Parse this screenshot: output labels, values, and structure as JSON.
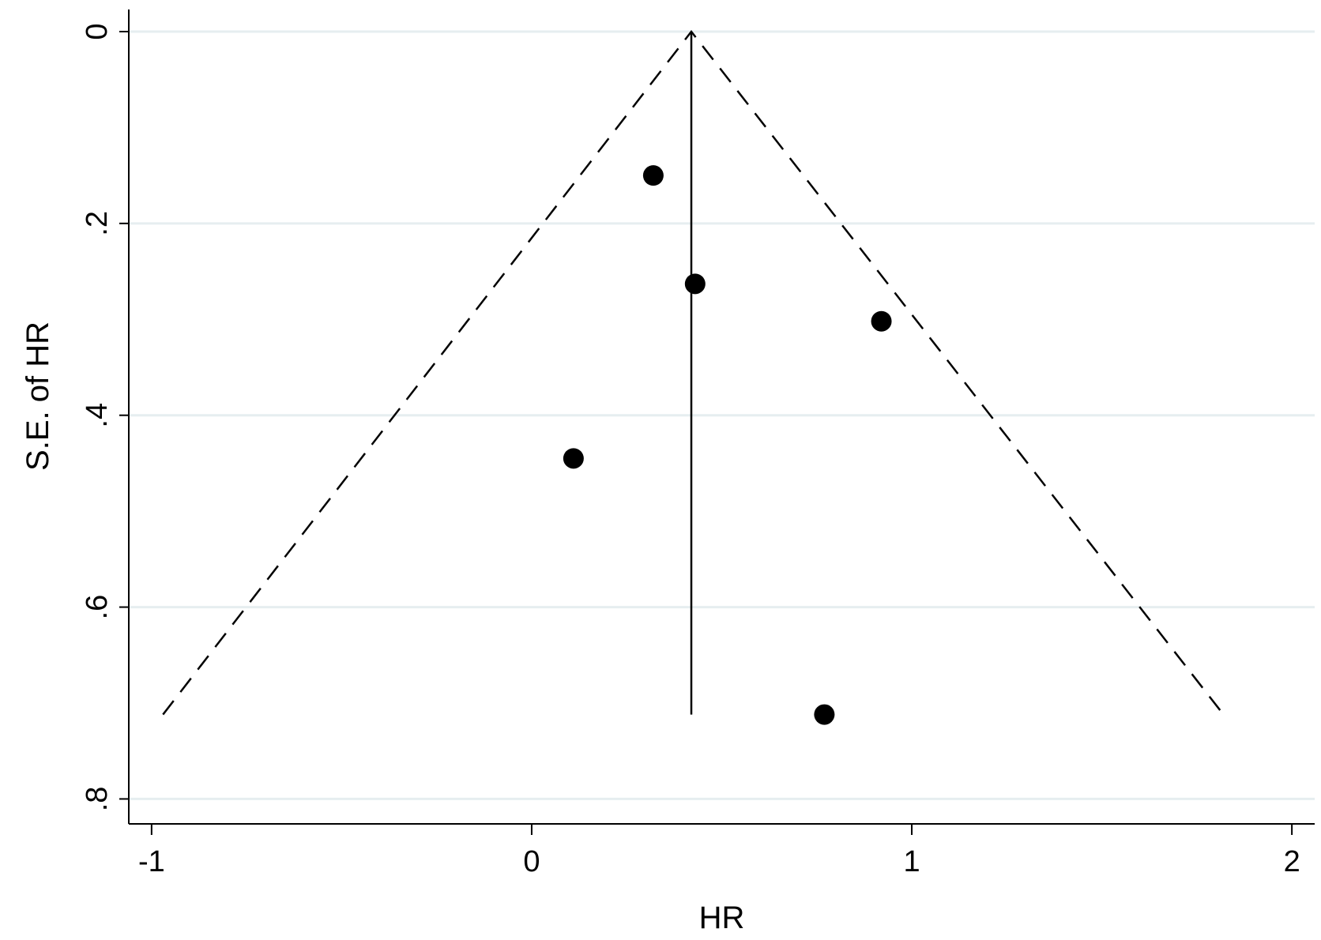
{
  "chart_data": {
    "type": "scatter",
    "title": "",
    "xlabel": "HR",
    "ylabel": "S.E. of HR",
    "xlim": [
      -1.06,
      2.06
    ],
    "ylim": [
      0,
      0.826
    ],
    "y_reversed": true,
    "grid": "horizontal",
    "x_ticks": [
      {
        "value": -1,
        "label": "-1"
      },
      {
        "value": 0,
        "label": "0"
      },
      {
        "value": 1,
        "label": "1"
      },
      {
        "value": 2,
        "label": "2"
      }
    ],
    "y_ticks": [
      {
        "value": 0,
        "label": "0"
      },
      {
        "value": 0.2,
        "label": ".2"
      },
      {
        "value": 0.4,
        "label": ".4"
      },
      {
        "value": 0.6,
        "label": ".6"
      },
      {
        "value": 0.8,
        "label": ".8"
      }
    ],
    "points": [
      {
        "x": 0.32,
        "y": 0.15
      },
      {
        "x": 0.43,
        "y": 0.263
      },
      {
        "x": 0.92,
        "y": 0.302
      },
      {
        "x": 0.11,
        "y": 0.445
      },
      {
        "x": 0.77,
        "y": 0.712
      }
    ],
    "pooled_estimate": {
      "x": 0.42,
      "se_max": 0.712
    },
    "funnel_limits": {
      "apex": [
        0.42,
        0
      ],
      "left_bottom": [
        -0.97,
        0.712
      ],
      "right_bottom": [
        1.82,
        0.712
      ]
    },
    "colors": {
      "points": "#000000",
      "grid": "#e6eef0",
      "axis": "#000000"
    }
  }
}
